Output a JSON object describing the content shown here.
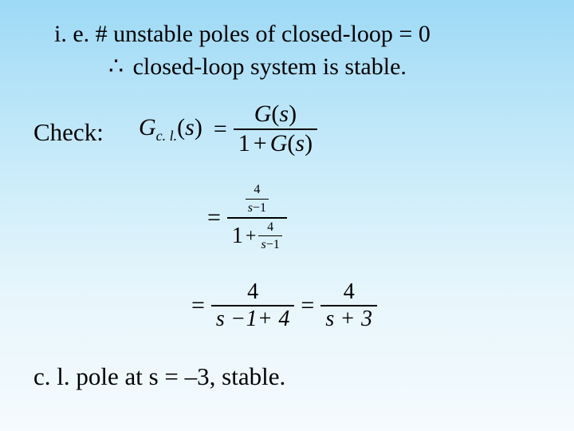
{
  "line1": "i. e. # unstable poles of closed-loop = 0",
  "line2_symbol": "∴",
  "line2_text": "closed-loop system is stable.",
  "check_label": "Check:",
  "eq1": {
    "lhs_G": "G",
    "lhs_sub": "c. l.",
    "lhs_arg": "s",
    "num_G": "G",
    "num_arg": "s",
    "den_one": "1",
    "den_plus": "+",
    "den_G": "G",
    "den_arg": "s"
  },
  "eq2": {
    "sf_num": "4",
    "sf_den_s": "s",
    "sf_den_minus": "−",
    "sf_den_one": "1",
    "outer_one": "1",
    "outer_plus": "+"
  },
  "eq3": {
    "f1_num": "4",
    "f1_den": "s −1+ 4",
    "f2_num": "4",
    "f2_den": "s + 3"
  },
  "conclusion": "c. l. pole at s = –3,  stable.",
  "colors": {
    "text": "#000000",
    "bg_top": "#9dd9f5",
    "bg_bottom": "#f5fbfe"
  },
  "fontsize_body_pt": 22
}
